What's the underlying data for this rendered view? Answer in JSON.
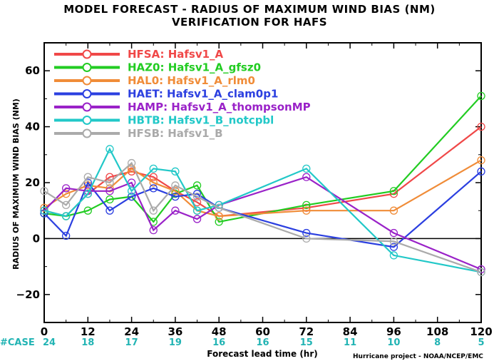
{
  "title_line1": "MODEL FORECAST - RADIUS OF MAXIMUM WIND BIAS (NM)",
  "title_line2": "VERIFICATION FOR HAFS",
  "credit": "Hurricane project - NOAA/NCEP/EMC",
  "cases_label": "#CASE",
  "chart_data": {
    "type": "line",
    "ylabel": "RADIUS OF MAXIMUM WIND BIAS (NM)",
    "xlabel": "Forecast lead time (hr)",
    "x": [
      0,
      6,
      12,
      18,
      24,
      30,
      36,
      42,
      48,
      72,
      96,
      120
    ],
    "xticks": [
      0,
      12,
      24,
      36,
      48,
      60,
      72,
      84,
      96,
      108,
      120
    ],
    "yticks": [
      -20,
      0,
      20,
      40,
      60
    ],
    "xlim": [
      0,
      120
    ],
    "ylim": [
      -30,
      70
    ],
    "zero_line": true,
    "grid": false,
    "legend_position": "top-left",
    "cases": [
      {
        "x": 0,
        "n": "24"
      },
      {
        "x": 12,
        "n": "18"
      },
      {
        "x": 24,
        "n": "17"
      },
      {
        "x": 36,
        "n": "19"
      },
      {
        "x": 48,
        "n": "16"
      },
      {
        "x": 60,
        "n": "16"
      },
      {
        "x": 72,
        "n": "15"
      },
      {
        "x": 84,
        "n": "11"
      },
      {
        "x": 96,
        "n": "10"
      },
      {
        "x": 108,
        "n": "8"
      },
      {
        "x": 120,
        "n": "5"
      }
    ],
    "series": [
      {
        "id": "HFSA",
        "name": "Hafsv1_A",
        "color": "#f04848",
        "values": [
          10,
          8,
          16,
          22,
          24,
          22,
          17,
          13,
          8,
          11,
          16,
          40
        ]
      },
      {
        "id": "HAZ0",
        "name": "Hafsv1_A_gfsz0",
        "color": "#22cc22",
        "values": [
          9,
          8,
          10,
          14,
          15,
          6,
          16,
          19,
          6,
          12,
          17,
          51
        ]
      },
      {
        "id": "HAL0",
        "name": "Hafsv1_A_rlm0",
        "color": "#f08c38",
        "values": [
          11,
          16,
          19,
          18,
          25,
          20,
          17,
          10,
          8,
          10,
          10,
          28
        ]
      },
      {
        "id": "HAET",
        "name": "Hafsv1_A_clam0p1",
        "color": "#2b3fe0",
        "values": [
          9,
          1,
          20,
          10,
          15,
          18,
          15,
          16,
          11,
          2,
          -3,
          24
        ]
      },
      {
        "id": "HAMP",
        "name": "Hafsv1_A_thompsonMP",
        "color": "#9a22c8",
        "values": [
          10,
          18,
          17,
          17,
          20,
          3,
          10,
          7,
          12,
          22,
          2,
          -11
        ]
      },
      {
        "id": "HBTB",
        "name": "Hafsv1_B_notcpbl",
        "color": "#22c8c8",
        "values": [
          10,
          8,
          16,
          32,
          17,
          25,
          24,
          10,
          12,
          25,
          -6,
          -12
        ]
      },
      {
        "id": "HFSB",
        "name": "Hafsv1_B",
        "color": "#aaaaaa",
        "values": [
          17,
          12,
          22,
          20,
          27,
          10,
          19,
          15,
          11,
          0,
          -1,
          -12
        ]
      }
    ]
  }
}
